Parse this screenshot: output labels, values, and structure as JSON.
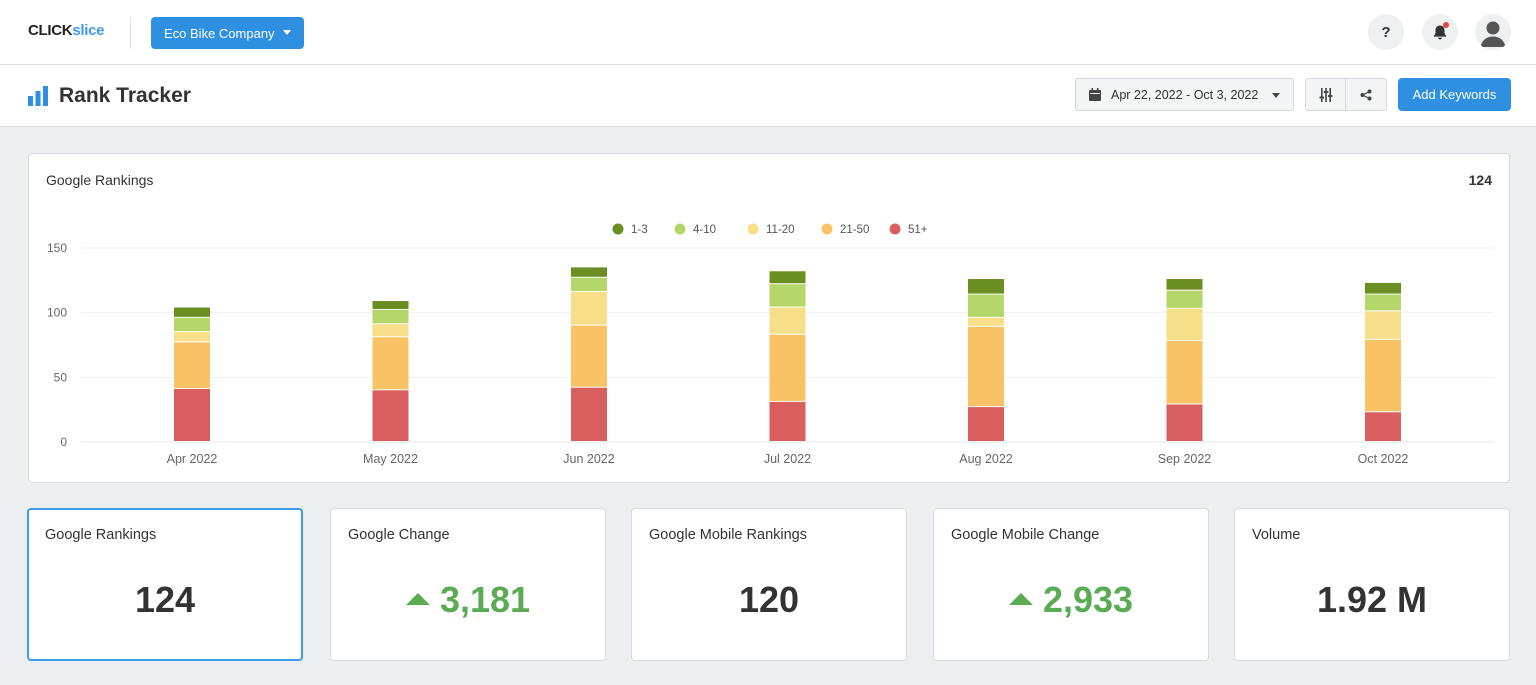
{
  "brand": {
    "part1": "CLICK",
    "part2": "slice"
  },
  "company_select": {
    "label": "Eco Bike Company"
  },
  "header_buttons": {
    "help": "?"
  },
  "page": {
    "title": "Rank Tracker"
  },
  "toolbar": {
    "date_range": "Apr 22, 2022 - Oct 3, 2022",
    "add_keywords": "Add Keywords"
  },
  "chart_card": {
    "title": "Google Rankings",
    "total": "124"
  },
  "chart_data": {
    "type": "bar",
    "stacked": true,
    "categories": [
      "Apr 2022",
      "May 2022",
      "Jun 2022",
      "Jul 2022",
      "Aug 2022",
      "Sep 2022",
      "Oct 2022"
    ],
    "series": [
      {
        "name": "51+",
        "color": "#d95f5f",
        "values": [
          41,
          40,
          42,
          31,
          27,
          29,
          23
        ]
      },
      {
        "name": "21-50",
        "color": "#f9c365",
        "values": [
          36,
          41,
          48,
          52,
          62,
          49,
          56
        ]
      },
      {
        "name": "11-20",
        "color": "#f6df88",
        "values": [
          8,
          10,
          26,
          21,
          7,
          25,
          22
        ]
      },
      {
        "name": "4-10",
        "color": "#b4d66a",
        "values": [
          11,
          11,
          11,
          18,
          18,
          14,
          13
        ]
      },
      {
        "name": "1-3",
        "color": "#6b8e23",
        "values": [
          8,
          7,
          8,
          10,
          12,
          9,
          9
        ]
      }
    ],
    "legend_order": [
      "1-3",
      "4-10",
      "11-20",
      "21-50",
      "51+"
    ],
    "legend_position": "top-center",
    "ylim": [
      0,
      150
    ],
    "yticks": [
      0,
      50,
      100,
      150
    ],
    "grid": true
  },
  "stats": [
    {
      "label": "Google Rankings",
      "value": "124",
      "trend": "none"
    },
    {
      "label": "Google Change",
      "value": "3,181",
      "trend": "up"
    },
    {
      "label": "Google Mobile Rankings",
      "value": "120",
      "trend": "none"
    },
    {
      "label": "Google Mobile Change",
      "value": "2,933",
      "trend": "up"
    },
    {
      "label": "Volume",
      "value": "1.92 M",
      "trend": "none"
    }
  ],
  "colors": {
    "primary": "#2f8fe0",
    "positive": "#5aab53",
    "active_border": "#3d9ce6"
  },
  "icons": {
    "page": "bar-chart-icon",
    "calendar": "calendar-icon",
    "filter": "sliders-icon",
    "share": "share-icon",
    "notifications": "bell-icon",
    "profile": "user-avatar-icon"
  }
}
